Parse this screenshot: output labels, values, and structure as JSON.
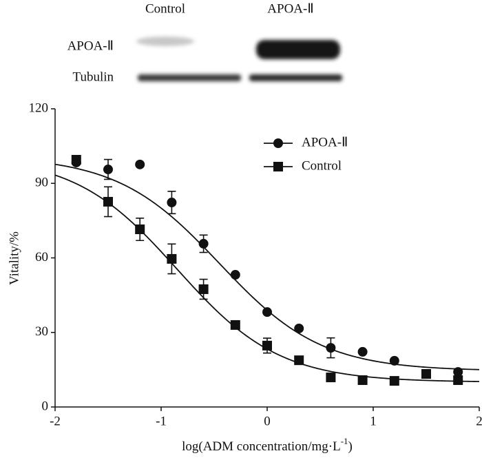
{
  "blot": {
    "columns": [
      "Control",
      "APOA-Ⅱ"
    ],
    "rows": [
      "APOA-Ⅱ",
      "Tubulin"
    ]
  },
  "chart_data": {
    "type": "scatter",
    "ylabel": "Vitality/%",
    "xlabel": {
      "text": "log(ADM concentration/mg·L",
      "superscript": "-1",
      "suffix": ")"
    },
    "xlim": [
      -2,
      2
    ],
    "xticks": [
      -2,
      -1,
      0,
      1,
      2
    ],
    "ylim": [
      0,
      120
    ],
    "yticks": [
      0,
      30,
      60,
      90,
      120
    ],
    "x": [
      -1.8,
      -1.5,
      -1.2,
      -0.9,
      -0.6,
      -0.3,
      0,
      0.3,
      0.6,
      0.9,
      1.2,
      1.5,
      1.8
    ],
    "series": [
      {
        "name": "APOA-Ⅱ",
        "marker": "circle",
        "color": "#111111",
        "values": [
          98.4,
          95.6,
          97.6,
          82.3,
          65.7,
          53.2,
          38.2,
          31.6,
          23.8,
          22.2,
          18.6,
          null,
          14.1
        ],
        "errors": [
          null,
          4,
          null,
          4.5,
          3.5,
          null,
          null,
          null,
          4,
          null,
          null,
          null,
          null
        ],
        "fit": {
          "top": 101,
          "bottom": 14.5,
          "ec50": -0.45,
          "hill": 0.9
        }
      },
      {
        "name": "Control",
        "marker": "square",
        "color": "#111111",
        "values": [
          99.5,
          82.6,
          71.5,
          59.6,
          47.4,
          33.0,
          24.7,
          18.8,
          11.9,
          10.8,
          10.5,
          13.3,
          10.8
        ],
        "errors": [
          null,
          6,
          4.5,
          6,
          4,
          null,
          3,
          null,
          null,
          null,
          null,
          null,
          null
        ],
        "fit": {
          "top": 101,
          "bottom": 10,
          "ec50": -0.85,
          "hill": 0.9
        }
      }
    ],
    "legend": "upper right"
  }
}
